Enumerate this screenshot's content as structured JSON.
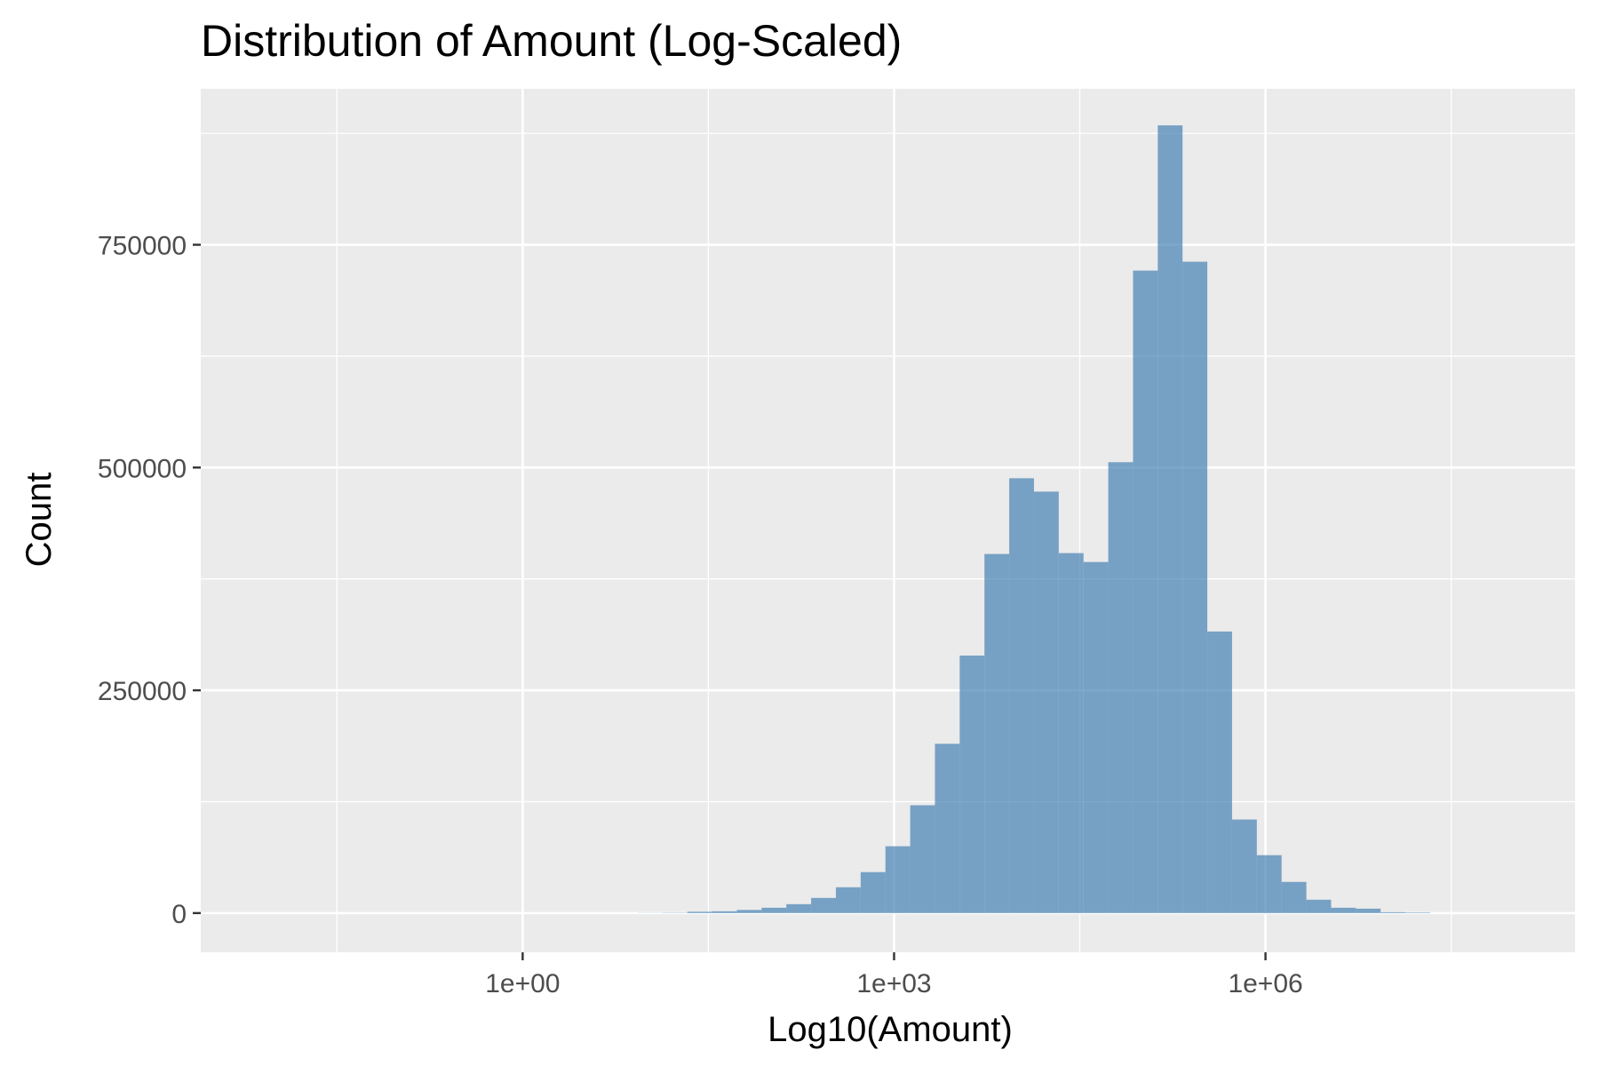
{
  "chart_data": {
    "type": "bar",
    "title": "Distribution of Amount (Log-Scaled)",
    "xlabel": "Log10(Amount)",
    "ylabel": "Count",
    "x_scale": "log10",
    "x_ticks": [
      {
        "value": 1,
        "label": "1e+00"
      },
      {
        "value": 1000,
        "label": "1e+03"
      },
      {
        "value": 1000000,
        "label": "1e+06"
      }
    ],
    "y_ticks": [
      {
        "value": 0,
        "label": "0"
      },
      {
        "value": 250000,
        "label": "250000"
      },
      {
        "value": 500000,
        "label": "500000"
      },
      {
        "value": 750000,
        "label": "750000"
      }
    ],
    "xlim_log10": [
      -2.6,
      8.5
    ],
    "ylim": [
      -44000,
      925000
    ],
    "bins": [
      {
        "log10_start": 0.93,
        "log10_end": 1.13,
        "count": 150
      },
      {
        "log10_start": 1.13,
        "log10_end": 1.33,
        "count": 300
      },
      {
        "log10_start": 1.33,
        "log10_end": 1.53,
        "count": 1500
      },
      {
        "log10_start": 1.53,
        "log10_end": 1.73,
        "count": 2000
      },
      {
        "log10_start": 1.73,
        "log10_end": 1.93,
        "count": 3500
      },
      {
        "log10_start": 1.93,
        "log10_end": 2.13,
        "count": 6000
      },
      {
        "log10_start": 2.13,
        "log10_end": 2.33,
        "count": 10000
      },
      {
        "log10_start": 2.33,
        "log10_end": 2.53,
        "count": 17000
      },
      {
        "log10_start": 2.53,
        "log10_end": 2.73,
        "count": 29000
      },
      {
        "log10_start": 2.73,
        "log10_end": 2.93,
        "count": 46000
      },
      {
        "log10_start": 2.93,
        "log10_end": 3.13,
        "count": 75000
      },
      {
        "log10_start": 3.13,
        "log10_end": 3.33,
        "count": 121000
      },
      {
        "log10_start": 3.33,
        "log10_end": 3.53,
        "count": 190000
      },
      {
        "log10_start": 3.53,
        "log10_end": 3.73,
        "count": 289000
      },
      {
        "log10_start": 3.73,
        "log10_end": 3.93,
        "count": 403000
      },
      {
        "log10_start": 3.93,
        "log10_end": 4.13,
        "count": 488000
      },
      {
        "log10_start": 4.13,
        "log10_end": 4.33,
        "count": 473000
      },
      {
        "log10_start": 4.33,
        "log10_end": 4.53,
        "count": 404000
      },
      {
        "log10_start": 4.53,
        "log10_end": 4.73,
        "count": 394000
      },
      {
        "log10_start": 4.73,
        "log10_end": 4.93,
        "count": 506000
      },
      {
        "log10_start": 4.93,
        "log10_end": 5.13,
        "count": 721000
      },
      {
        "log10_start": 5.13,
        "log10_end": 5.33,
        "count": 884000
      },
      {
        "log10_start": 5.33,
        "log10_end": 5.53,
        "count": 731000
      },
      {
        "log10_start": 5.53,
        "log10_end": 5.73,
        "count": 316000
      },
      {
        "log10_start": 5.73,
        "log10_end": 5.93,
        "count": 105000
      },
      {
        "log10_start": 5.93,
        "log10_end": 6.13,
        "count": 65000
      },
      {
        "log10_start": 6.13,
        "log10_end": 6.33,
        "count": 35000
      },
      {
        "log10_start": 6.33,
        "log10_end": 6.53,
        "count": 15000
      },
      {
        "log10_start": 6.53,
        "log10_end": 6.73,
        "count": 6000
      },
      {
        "log10_start": 6.73,
        "log10_end": 6.93,
        "count": 5000
      },
      {
        "log10_start": 6.93,
        "log10_end": 7.13,
        "count": 1000
      },
      {
        "log10_start": 7.13,
        "log10_end": 7.33,
        "count": 600
      }
    ],
    "colors": {
      "panel_background": "#ebebeb",
      "bar_fill": "#4682b4",
      "grid": "#ffffff"
    },
    "grid": true,
    "legend": "none"
  }
}
